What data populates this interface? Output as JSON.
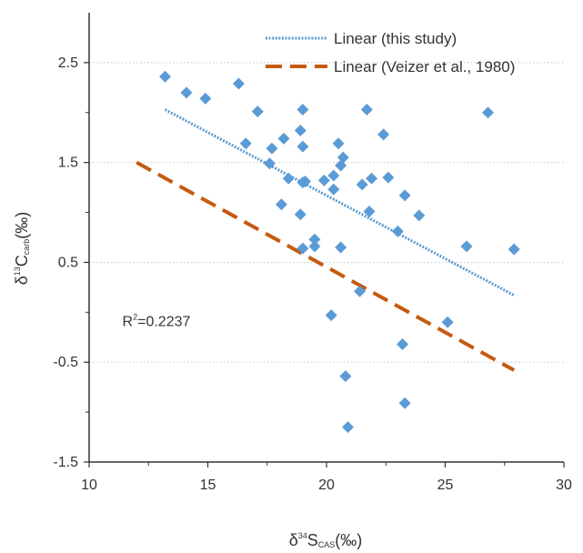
{
  "chart_data": {
    "type": "scatter",
    "title": "",
    "xlabel": {
      "prefix": "δ",
      "sup": "34",
      "main": "S",
      "sub": "CAS",
      "unit": "(‰)"
    },
    "ylabel": {
      "prefix": "δ",
      "sup": "13",
      "main": "C",
      "sub": "carb",
      "unit": "(‰)"
    },
    "xlim": [
      10,
      30
    ],
    "ylim": [
      -1.5,
      3.0
    ],
    "xticks": [
      {
        "value": 10,
        "label": "10"
      },
      {
        "value": 15,
        "label": "15"
      },
      {
        "value": 20,
        "label": "20"
      },
      {
        "value": 25,
        "label": "25"
      },
      {
        "value": 30,
        "label": "30"
      }
    ],
    "yticks": [
      {
        "value": -1.5,
        "label": "-1.5"
      },
      {
        "value": -0.5,
        "label": "-0.5"
      },
      {
        "value": 0.5,
        "label": "0.5"
      },
      {
        "value": 1.5,
        "label": "1.5"
      },
      {
        "value": 2.5,
        "label": "2.5"
      }
    ],
    "grid": {
      "horizontal": true,
      "vertical": false
    },
    "legend_position": "top-right",
    "points": {
      "color": "#5b9bd5",
      "marker": "diamond",
      "x": [
        13.2,
        14.1,
        14.9,
        16.3,
        16.6,
        17.1,
        17.6,
        17.7,
        18.1,
        18.2,
        18.4,
        18.9,
        18.9,
        19.0,
        19.0,
        19.0,
        19.0,
        19.1,
        19.5,
        19.5,
        19.9,
        20.2,
        20.3,
        20.3,
        20.5,
        20.6,
        20.6,
        20.7,
        20.8,
        20.9,
        21.4,
        21.5,
        21.7,
        21.8,
        21.9,
        22.4,
        22.6,
        23.0,
        23.2,
        23.3,
        23.3,
        23.9,
        25.1,
        25.9,
        26.8,
        27.9
      ],
      "y": [
        2.36,
        2.2,
        2.14,
        2.29,
        1.69,
        2.01,
        1.49,
        1.64,
        1.08,
        1.74,
        1.34,
        0.98,
        1.82,
        1.66,
        1.3,
        2.03,
        0.64,
        1.31,
        0.66,
        0.73,
        1.32,
        -0.03,
        1.23,
        1.37,
        1.69,
        1.47,
        0.65,
        1.55,
        -0.64,
        -1.15,
        0.21,
        1.28,
        2.03,
        1.01,
        1.34,
        1.78,
        1.35,
        0.81,
        -0.32,
        1.17,
        -0.91,
        0.97,
        -0.1,
        0.66,
        2.0,
        0.63
      ]
    },
    "series": [
      {
        "name": "Linear (this study)",
        "kind": "trendline",
        "color": "#5b9bd5",
        "style": "dotted",
        "x": [
          13.2,
          27.9
        ],
        "y": [
          2.03,
          0.17
        ]
      },
      {
        "name": "Linear (Veizer et al., 1980)",
        "kind": "trendline",
        "color": "#c55a11",
        "style": "dashed",
        "x": [
          12.0,
          27.9
        ],
        "y": [
          1.5,
          -0.58
        ]
      }
    ],
    "annotation": {
      "prefix": "R",
      "sup": "2",
      "rest": "=0.2237",
      "x": 11.4,
      "y": -0.14
    }
  }
}
